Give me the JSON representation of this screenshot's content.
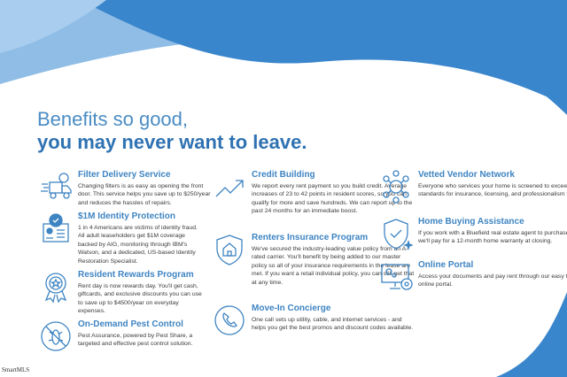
{
  "headline": {
    "line1": "Benefits so good,",
    "line2": "you may never want to leave."
  },
  "colors": {
    "wave_dark": "#3a86cc",
    "wave_light": "#8fbde6",
    "heading": "#3e84c2",
    "title_bold": "#2f72b2"
  },
  "benefits": [
    {
      "title": "Filter Delivery Service",
      "icon": "delivery-truck-icon",
      "text": "Changing filters is as easy as opening the front door. This service helps you save up to $250/year and reduces the hassles of repairs."
    },
    {
      "title": "$1M Identity Protection",
      "icon": "id-card-check-icon",
      "text": "1 in 4 Americans are victims of identity fraud. All adult leaseholders get $1M coverage backed by AIG, monitoring through IBM's Watson, and a dedicated, US-based Identity Restoration Specialist."
    },
    {
      "title": "Resident Rewards Program",
      "icon": "award-badge-icon",
      "text": "Rent day is now rewards day. You'll get cash, giftcards, and exclusive discounts you can use to save up to $4500/year on everyday expenses."
    },
    {
      "title": "On-Demand Pest Control",
      "icon": "no-bugs-icon",
      "text": "Pest Assurance, powered by Pest Share, a targeted and effective pest control solution."
    },
    {
      "title": "Credit Building",
      "icon": "trend-up-icon",
      "text": "We report every rent payment so you build credit. Average increases of 23 to 42 points in resident scores, so you can qualify for more and save hundreds. We can report up to the past 24 months for an immediate boost."
    },
    {
      "title": "Renters Insurance Program",
      "icon": "shield-home-icon",
      "text": "We've secured the industry-leading value policy from an A-rated carrier. You'll benefit by being added to our master policy so all of your insurance requirements in the lease are met. If you want a retail individual policy, you can still get that at any time."
    },
    {
      "title": "Move-In Concierge",
      "icon": "phone-icon",
      "text": "One call sets up utility, cable, and internet services - and helps you get the best promos and discount codes available."
    },
    {
      "title": "Vetted Vendor Network",
      "icon": "network-people-icon",
      "text": "Everyone who services your home is screened to exceed our standards for insurance, licensing, and professionalism for the job."
    },
    {
      "title": "Home Buying Assistance",
      "icon": "shield-check-icon",
      "text": "If you work with a Bluefield real estate agent to purchase a home, we'll pay for a 12-month home warranty at closing."
    },
    {
      "title": "Online Portal",
      "icon": "computer-gears-icon",
      "text": "Access your documents and pay rent through our easy to use online portal."
    }
  ],
  "watermark": "SmartMLS"
}
